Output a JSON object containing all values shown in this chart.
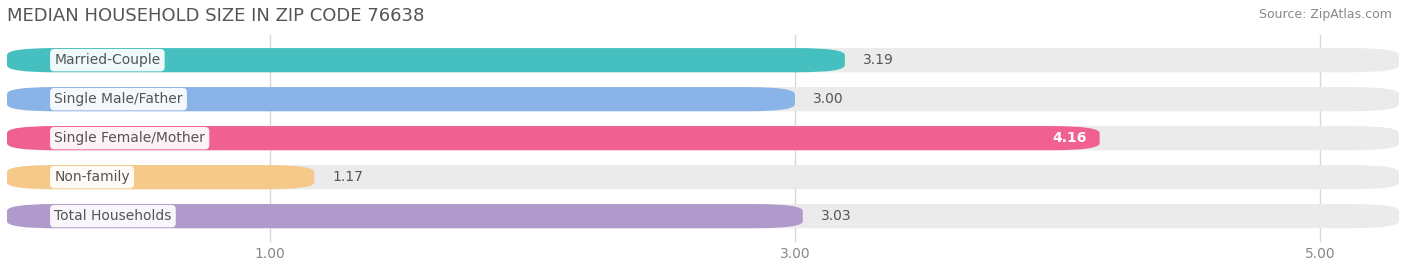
{
  "title": "MEDIAN HOUSEHOLD SIZE IN ZIP CODE 76638",
  "source": "Source: ZipAtlas.com",
  "categories": [
    "Married-Couple",
    "Single Male/Father",
    "Single Female/Mother",
    "Non-family",
    "Total Households"
  ],
  "values": [
    3.19,
    3.0,
    4.16,
    1.17,
    3.03
  ],
  "colors": [
    "#45bfbf",
    "#8ab4e8",
    "#f06090",
    "#f5c98a",
    "#b09acc"
  ],
  "value_in_bar": [
    false,
    false,
    true,
    false,
    false
  ],
  "xlim": [
    0,
    5.3
  ],
  "xmin": 0,
  "xticks": [
    1.0,
    3.0,
    5.0
  ],
  "xtick_labels": [
    "1.00",
    "3.00",
    "5.00"
  ],
  "bar_height": 0.62,
  "background_color": "#ffffff",
  "bar_bg_color": "#ebebeb",
  "title_fontsize": 13,
  "label_fontsize": 10,
  "value_fontsize": 10,
  "source_fontsize": 9,
  "label_text_color": "#555555",
  "value_text_color_outside": "#555555",
  "value_text_color_inside": "#ffffff",
  "grid_color": "#d8d8d8"
}
